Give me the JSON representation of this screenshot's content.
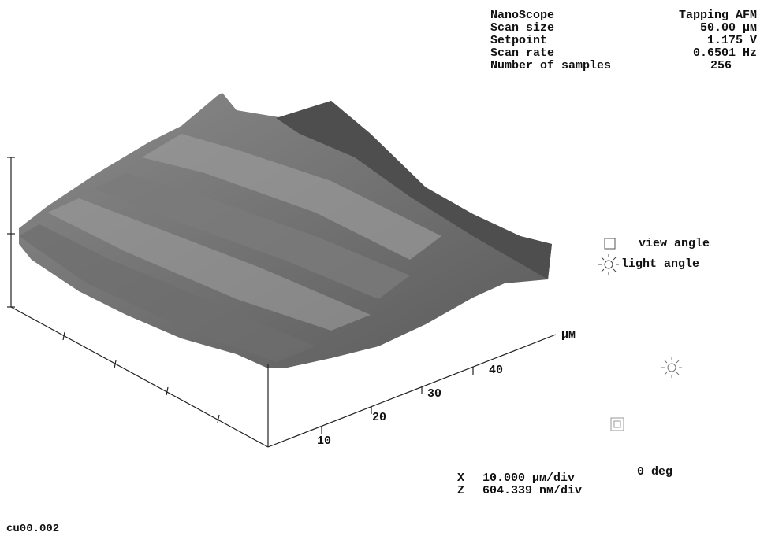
{
  "header": {
    "rows": [
      [
        "NanoScope",
        "Tapping AFM"
      ],
      [
        "Scan size",
        "50.00 µм"
      ],
      [
        "Setpoint",
        "1.175 V"
      ],
      [
        "Scan rate",
        "0.6501 Hz"
      ],
      [
        "Number of samples",
        "256"
      ]
    ]
  },
  "axis": {
    "ticks": [
      "10",
      "20",
      "30",
      "40"
    ],
    "unit": "µм"
  },
  "legend": {
    "view": "view angle",
    "light": "light angle",
    "angle": "0 deg"
  },
  "scale": {
    "rows": [
      [
        "X",
        "10.000 µм/div"
      ],
      [
        "Z",
        "604.339 nм/div"
      ]
    ]
  },
  "filename": "cu00.002"
}
